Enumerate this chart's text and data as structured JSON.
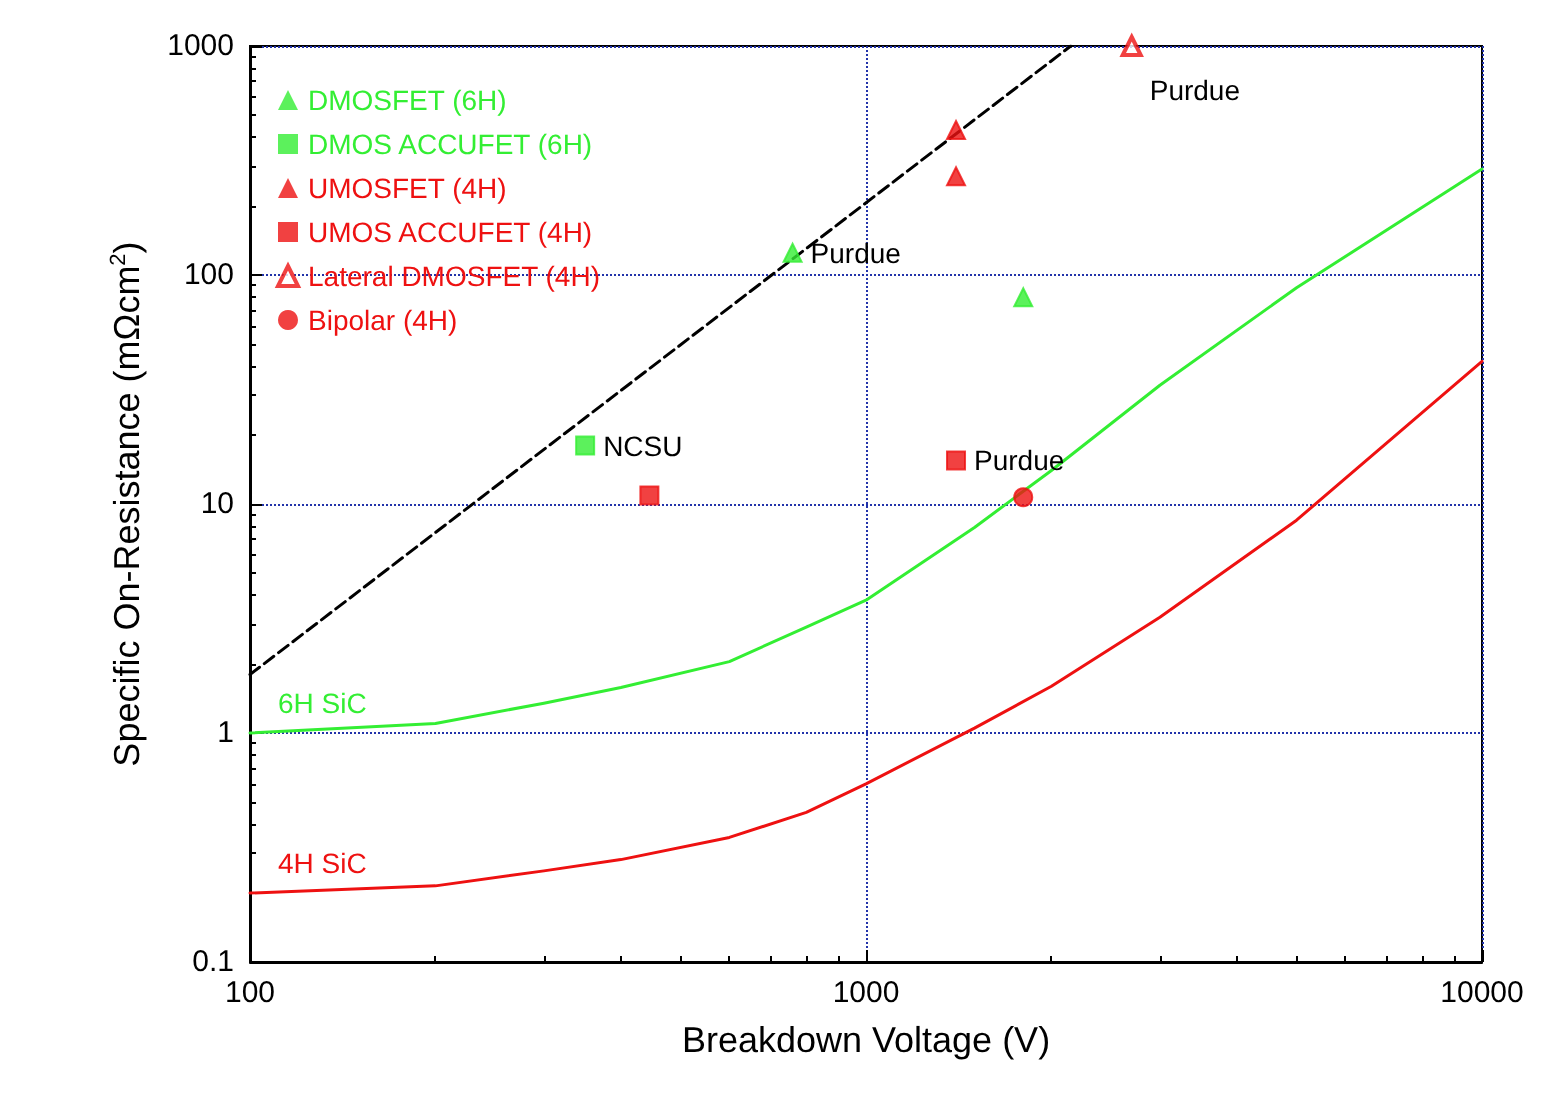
{
  "chart_data": {
    "type": "scatter",
    "xlabel": "Breakdown Voltage (V)",
    "ylabel": "Specific On-Resistance (mΩcm$^{2}$)",
    "log": "xy",
    "grid": true,
    "legend": "top left",
    "xlim": [
      100,
      10000
    ],
    "xticks": [
      100,
      1000,
      10000
    ],
    "ylim": [
      0.1,
      1000
    ],
    "yticks": [
      0.1,
      1,
      10,
      100,
      1000
    ],
    "series": [
      {
        "name": "DMOSFET (6H)",
        "color": "#33ee33",
        "marker": "triangle",
        "x": [
          760,
          1800
        ],
        "values": [
          125,
          80
        ]
      },
      {
        "name": "DMOS ACCUFET (6H)",
        "color": "#33ee33",
        "marker": "square",
        "x": [
          350
        ],
        "values": [
          18
        ]
      },
      {
        "name": "UMOSFET (4H)",
        "color": "#ee1111",
        "marker": "triangle",
        "x": [
          1400,
          1400
        ],
        "values": [
          430,
          270
        ]
      },
      {
        "name": "UMOS ACCUFET (4H)",
        "color": "#ee1111",
        "marker": "square",
        "x": [
          445,
          1400
        ],
        "values": [
          10.9,
          15.5
        ]
      },
      {
        "name": "Lateral DMOSFET (4H)",
        "color": "#ee1111",
        "marker": "triangle-open",
        "x": [
          2700
        ],
        "values": [
          1000
        ]
      },
      {
        "name": "Bipolar (4H)",
        "color": "#ee1111",
        "marker": "circle",
        "x": [
          1800
        ],
        "values": [
          10.7
        ]
      },
      {
        "type": "line",
        "name": "6H SiC",
        "color": "#33ee33",
        "marker": "none",
        "line_style": "solid",
        "x": [
          100,
          200,
          300,
          400,
          600,
          800,
          1000,
          1500,
          2000,
          3000,
          5000,
          10000
        ],
        "values": [
          1.0,
          1.1,
          1.35,
          1.58,
          2.05,
          2.9,
          3.8,
          7.9,
          14,
          33,
          88,
          290
        ]
      },
      {
        "type": "line",
        "name": "4H SiC",
        "color": "#ee1111",
        "marker": "none",
        "line_style": "solid",
        "x": [
          100,
          200,
          300,
          400,
          600,
          800,
          1000,
          1500,
          2000,
          3000,
          5000,
          10000
        ],
        "values": [
          0.2,
          0.215,
          0.25,
          0.28,
          0.35,
          0.45,
          0.6,
          1.05,
          1.6,
          3.2,
          8.5,
          42
        ]
      },
      {
        "type": "line",
        "color": "#000000",
        "marker": "none",
        "line_style": "dashed",
        "x": [
          100,
          2150
        ],
        "values": [
          1.8,
          1000
        ]
      }
    ],
    "annotations": [
      {
        "text": "Purdue",
        "x": 760,
        "y": 125
      },
      {
        "text": "Purdue",
        "x": 1400,
        "y": 15.5
      },
      {
        "text": "Purdue",
        "x": 2700,
        "y": 1000
      },
      {
        "text": "NCSU",
        "x": 350,
        "y": 18
      }
    ]
  }
}
